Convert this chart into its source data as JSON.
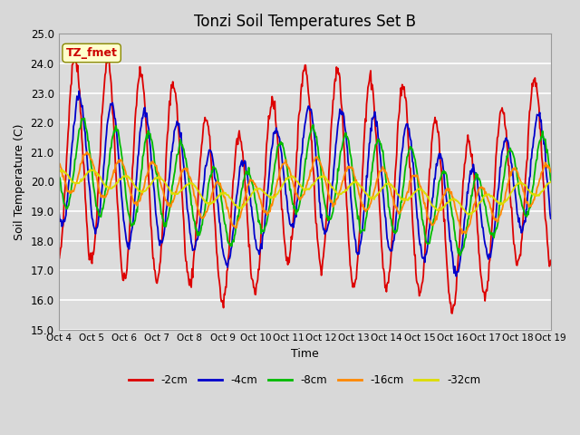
{
  "title": "Tonzi Soil Temperatures Set B",
  "xlabel": "Time",
  "ylabel": "Soil Temperature (C)",
  "ylim": [
    15.0,
    25.0
  ],
  "yticks": [
    15.0,
    16.0,
    17.0,
    18.0,
    19.0,
    20.0,
    21.0,
    22.0,
    23.0,
    24.0,
    25.0
  ],
  "xtick_labels": [
    "Oct 4",
    "Oct 5",
    "Oct 6",
    "Oct 7",
    "Oct 8",
    "Oct 9",
    "Oct 10",
    "Oct 11",
    "Oct 12",
    "Oct 13",
    "Oct 14",
    "Oct 15",
    "Oct 16",
    "Oct 17",
    "Oct 18",
    "Oct 19"
  ],
  "annotation_text": "TZ_fmet",
  "annotation_color": "#cc0000",
  "annotation_bg": "#ffffcc",
  "annotation_border": "#888800",
  "series": [
    {
      "label": "-2cm",
      "color": "#dd0000",
      "lw": 1.3
    },
    {
      "label": "-4cm",
      "color": "#0000cc",
      "lw": 1.3
    },
    {
      "label": "-8cm",
      "color": "#00bb00",
      "lw": 1.3
    },
    {
      "label": "-16cm",
      "color": "#ff8800",
      "lw": 1.3
    },
    {
      "label": "-32cm",
      "color": "#dddd00",
      "lw": 1.3
    }
  ],
  "bg_color": "#e0e0e0",
  "plot_bg": "#dcdcdc",
  "grid_color": "#ffffff",
  "days": 15,
  "n_points": 720
}
